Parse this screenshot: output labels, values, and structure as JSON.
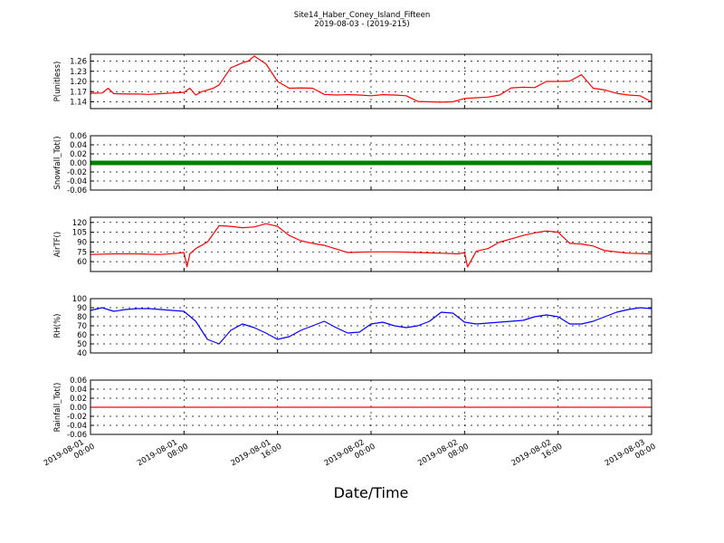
{
  "title_line1": "Site14_Haber_Coney_Island_Fifteen",
  "title_line2": "2019-08-03 - (2019-215)",
  "xlabel": "Date/Time",
  "x_ticks": [
    {
      "line1": "2019-08-01",
      "line2": "00:00"
    },
    {
      "line1": "2019-08-01",
      "line2": "08:00"
    },
    {
      "line1": "2019-08-01",
      "line2": "16:00"
    },
    {
      "line1": "2019-08-02",
      "line2": "00:00"
    },
    {
      "line1": "2019-08-02",
      "line2": "08:00"
    },
    {
      "line1": "2019-08-02",
      "line2": "16:00"
    },
    {
      "line1": "2019-08-03",
      "line2": "00:00"
    }
  ],
  "chart_data": [
    {
      "type": "line",
      "ylabel": "P(unitless)",
      "color": "#ff0000",
      "xlim": [
        "2019-08-01 00:00",
        "2019-08-03 00:00"
      ],
      "ylim": [
        1.12,
        1.28
      ],
      "yticks": [
        "1.26",
        "1.23",
        "1.20",
        "1.17",
        "1.14"
      ],
      "ytick_values": [
        1.26,
        1.23,
        1.2,
        1.17,
        1.14
      ],
      "grid": true,
      "x": [
        "2019-08-01 00:00",
        "2019-08-01 01:00",
        "2019-08-01 01:30",
        "2019-08-01 02:00",
        "2019-08-01 03:00",
        "2019-08-01 04:00",
        "2019-08-01 05:00",
        "2019-08-01 06:00",
        "2019-08-01 07:00",
        "2019-08-01 08:00",
        "2019-08-01 08:30",
        "2019-08-01 09:00",
        "2019-08-01 09:30",
        "2019-08-01 10:00",
        "2019-08-01 10:30",
        "2019-08-01 11:00",
        "2019-08-01 12:00",
        "2019-08-01 13:00",
        "2019-08-01 13:30",
        "2019-08-01 14:00",
        "2019-08-01 15:00",
        "2019-08-01 16:00",
        "2019-08-01 17:00",
        "2019-08-01 18:00",
        "2019-08-01 19:00",
        "2019-08-01 20:00",
        "2019-08-01 21:00",
        "2019-08-01 22:00",
        "2019-08-01 23:00",
        "2019-08-02 00:00",
        "2019-08-02 01:00",
        "2019-08-02 02:00",
        "2019-08-02 03:00",
        "2019-08-02 04:00",
        "2019-08-02 05:00",
        "2019-08-02 06:00",
        "2019-08-02 07:00",
        "2019-08-02 08:00",
        "2019-08-02 09:00",
        "2019-08-02 10:00",
        "2019-08-02 11:00",
        "2019-08-02 12:00",
        "2019-08-02 13:00",
        "2019-08-02 14:00",
        "2019-08-02 15:00",
        "2019-08-02 16:00",
        "2019-08-02 17:00",
        "2019-08-02 18:00",
        "2019-08-02 19:00",
        "2019-08-02 20:00",
        "2019-08-02 21:00",
        "2019-08-02 22:00",
        "2019-08-02 23:00",
        "2019-08-03 00:00"
      ],
      "y": [
        1.165,
        1.166,
        1.18,
        1.164,
        1.163,
        1.163,
        1.162,
        1.164,
        1.166,
        1.168,
        1.18,
        1.16,
        1.17,
        1.175,
        1.18,
        1.19,
        1.24,
        1.255,
        1.26,
        1.275,
        1.252,
        1.2,
        1.18,
        1.181,
        1.18,
        1.162,
        1.16,
        1.161,
        1.16,
        1.158,
        1.161,
        1.16,
        1.158,
        1.141,
        1.14,
        1.139,
        1.14,
        1.15,
        1.152,
        1.154,
        1.16,
        1.181,
        1.183,
        1.182,
        1.2,
        1.2,
        1.201,
        1.22,
        1.18,
        1.175,
        1.165,
        1.16,
        1.158,
        1.14
      ]
    },
    {
      "type": "scatter",
      "ylabel": "Snowfall_Tot()",
      "color": "#008000",
      "xlim": [
        "2019-08-01 00:00",
        "2019-08-03 00:00"
      ],
      "ylim": [
        -0.06,
        0.06
      ],
      "yticks": [
        "0.06",
        "0.04",
        "0.02",
        "0.00",
        "-0.02",
        "-0.04",
        "-0.06"
      ],
      "ytick_values": [
        0.06,
        0.04,
        0.02,
        0.0,
        -0.02,
        -0.04,
        -0.06
      ],
      "grid": true,
      "x": [
        "2019-08-01 00:00",
        "2019-08-03 00:00"
      ],
      "y": [
        0.0,
        0.0
      ]
    },
    {
      "type": "line",
      "ylabel": "AirTF()",
      "color": "#ff0000",
      "xlim": [
        "2019-08-01 00:00",
        "2019-08-03 00:00"
      ],
      "ylim": [
        45,
        128
      ],
      "yticks": [
        "120",
        "105",
        "90",
        "75",
        "60"
      ],
      "ytick_values": [
        120,
        105,
        90,
        75,
        60
      ],
      "grid": true,
      "x": [
        "2019-08-01 00:00",
        "2019-08-01 02:00",
        "2019-08-01 04:00",
        "2019-08-01 06:00",
        "2019-08-01 07:30",
        "2019-08-01 08:00",
        "2019-08-01 08:15",
        "2019-08-01 08:30",
        "2019-08-01 09:00",
        "2019-08-01 10:00",
        "2019-08-01 11:00",
        "2019-08-01 12:00",
        "2019-08-01 13:00",
        "2019-08-01 14:00",
        "2019-08-01 15:00",
        "2019-08-01 16:00",
        "2019-08-01 17:00",
        "2019-08-01 18:00",
        "2019-08-01 19:00",
        "2019-08-01 20:00",
        "2019-08-01 22:00",
        "2019-08-02 00:00",
        "2019-08-02 02:00",
        "2019-08-02 04:00",
        "2019-08-02 06:00",
        "2019-08-02 07:30",
        "2019-08-02 08:00",
        "2019-08-02 08:15",
        "2019-08-02 09:00",
        "2019-08-02 10:00",
        "2019-08-02 11:00",
        "2019-08-02 12:00",
        "2019-08-02 13:00",
        "2019-08-02 14:00",
        "2019-08-02 15:00",
        "2019-08-02 16:00",
        "2019-08-02 17:00",
        "2019-08-02 18:00",
        "2019-08-02 19:00",
        "2019-08-02 20:00",
        "2019-08-02 22:00",
        "2019-08-03 00:00"
      ],
      "y": [
        71,
        72,
        72,
        71,
        73,
        74,
        52,
        72,
        80,
        90,
        115,
        114,
        112,
        113,
        118,
        114,
        100,
        92,
        88,
        85,
        74,
        75,
        75,
        74,
        73,
        72,
        74,
        52,
        76,
        80,
        90,
        95,
        100,
        104,
        107,
        105,
        88,
        87,
        84,
        77,
        73,
        72
      ]
    },
    {
      "type": "line",
      "ylabel": "RH(%)",
      "color": "#0000ff",
      "xlim": [
        "2019-08-01 00:00",
        "2019-08-03 00:00"
      ],
      "ylim": [
        40,
        100
      ],
      "yticks": [
        "100",
        "90",
        "80",
        "70",
        "60",
        "50",
        "40"
      ],
      "ytick_values": [
        100,
        90,
        80,
        70,
        60,
        50,
        40
      ],
      "grid": true,
      "x": [
        "2019-08-01 00:00",
        "2019-08-01 01:00",
        "2019-08-01 02:00",
        "2019-08-01 03:00",
        "2019-08-01 04:00",
        "2019-08-01 05:00",
        "2019-08-01 06:00",
        "2019-08-01 07:00",
        "2019-08-01 08:00",
        "2019-08-01 09:00",
        "2019-08-01 10:00",
        "2019-08-01 11:00",
        "2019-08-01 12:00",
        "2019-08-01 13:00",
        "2019-08-01 14:00",
        "2019-08-01 15:00",
        "2019-08-01 16:00",
        "2019-08-01 17:00",
        "2019-08-01 18:00",
        "2019-08-01 19:00",
        "2019-08-01 20:00",
        "2019-08-01 21:00",
        "2019-08-01 22:00",
        "2019-08-01 23:00",
        "2019-08-02 00:00",
        "2019-08-02 01:00",
        "2019-08-02 02:00",
        "2019-08-02 03:00",
        "2019-08-02 04:00",
        "2019-08-02 05:00",
        "2019-08-02 06:00",
        "2019-08-02 07:00",
        "2019-08-02 08:00",
        "2019-08-02 09:00",
        "2019-08-02 10:00",
        "2019-08-02 11:00",
        "2019-08-02 12:00",
        "2019-08-02 13:00",
        "2019-08-02 14:00",
        "2019-08-02 15:00",
        "2019-08-02 16:00",
        "2019-08-02 17:00",
        "2019-08-02 18:00",
        "2019-08-02 19:00",
        "2019-08-02 20:00",
        "2019-08-02 21:00",
        "2019-08-02 22:00",
        "2019-08-02 23:00",
        "2019-08-03 00:00"
      ],
      "y": [
        87,
        90,
        86,
        88,
        89,
        89,
        88,
        87,
        86,
        75,
        55,
        50,
        65,
        72,
        68,
        62,
        55,
        58,
        65,
        70,
        75,
        68,
        62,
        63,
        72,
        74,
        70,
        68,
        70,
        75,
        85,
        84,
        74,
        72,
        73,
        74,
        75,
        76,
        80,
        82,
        80,
        72,
        72,
        75,
        80,
        85,
        88,
        90,
        89
      ]
    },
    {
      "type": "line",
      "ylabel": "Rainfall_Tot()",
      "color": "#ff0000",
      "xlim": [
        "2019-08-01 00:00",
        "2019-08-03 00:00"
      ],
      "ylim": [
        -0.06,
        0.06
      ],
      "yticks": [
        "0.06",
        "0.04",
        "0.02",
        "0.00",
        "-0.02",
        "-0.04",
        "-0.06"
      ],
      "ytick_values": [
        0.06,
        0.04,
        0.02,
        0.0,
        -0.02,
        -0.04,
        -0.06
      ],
      "grid": true,
      "x": [
        "2019-08-01 00:00",
        "2019-08-03 00:00"
      ],
      "y": [
        0.0,
        0.0
      ]
    }
  ]
}
